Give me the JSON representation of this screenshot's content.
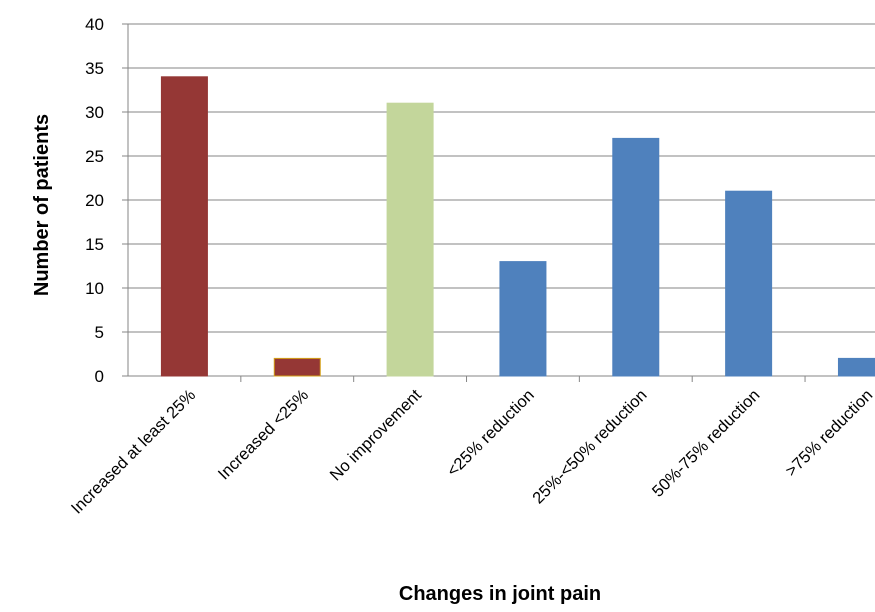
{
  "chart_data": {
    "type": "bar",
    "title": "",
    "xlabel": "Changes in joint pain",
    "ylabel": "Number of patients",
    "ylim": [
      0,
      40
    ],
    "yticks": [
      "0",
      "5",
      "10",
      "15",
      "20",
      "25",
      "30",
      "35",
      "40"
    ],
    "grid": true,
    "legend": "none",
    "categories": [
      "Increased at least 25%",
      "Increased <25%",
      "No improvement",
      "<25% reduction",
      "25%-<50% reduction",
      "50%-75% reduction",
      ">75% reduction"
    ],
    "values": [
      34,
      2,
      31,
      13,
      27,
      21,
      2
    ],
    "bar_colors": [
      "#953735",
      "#953735",
      "#C3D69B",
      "#4F81BD",
      "#4F81BD",
      "#4F81BD",
      "#4F81BD"
    ],
    "bar_edge_colors": [
      "#953735",
      "#D4A017",
      "#C3D69B",
      "#4F81BD",
      "#4F81BD",
      "#4F81BD",
      "#4F81BD"
    ]
  }
}
